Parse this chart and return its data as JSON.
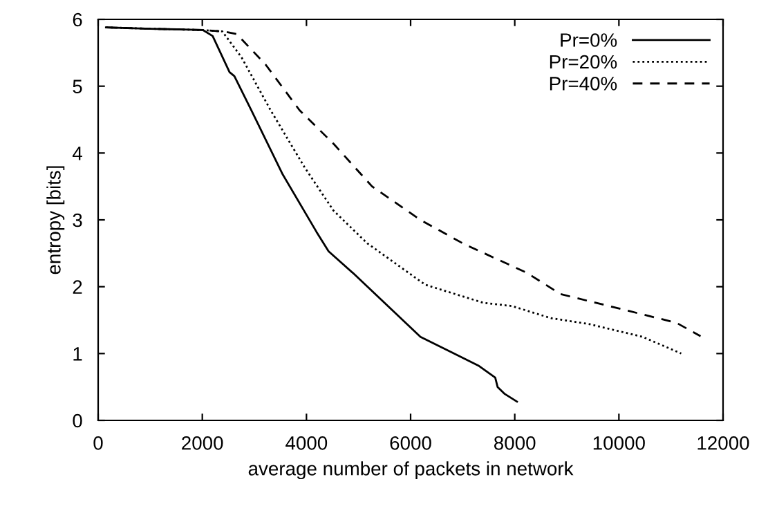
{
  "chart_data": {
    "type": "line",
    "xlabel": "average number of packets in network",
    "ylabel": "entropy [bits]",
    "xlim": [
      0,
      12000
    ],
    "ylim": [
      0,
      6
    ],
    "xticks": [
      0,
      2000,
      4000,
      6000,
      8000,
      10000,
      12000
    ],
    "yticks": [
      0,
      1,
      2,
      3,
      4,
      5,
      6
    ],
    "grid": false,
    "legend": "top right",
    "series": [
      {
        "name": "Pr=0%",
        "color": "#000000",
        "line_style": "solid",
        "x": [
          150,
          1000,
          2013,
          2199,
          2523,
          2616,
          2941,
          3544,
          4193,
          4425,
          4900,
          6190,
          7300,
          7625,
          7670,
          7800,
          8043
        ],
        "values": [
          5.88,
          5.86,
          5.84,
          5.75,
          5.21,
          5.15,
          4.64,
          3.68,
          2.82,
          2.53,
          2.2,
          1.25,
          0.82,
          0.64,
          0.5,
          0.4,
          0.28
        ]
      },
      {
        "name": "Pr=20%",
        "color": "#000000",
        "line_style": "dotted",
        "x": [
          150,
          1000,
          2000,
          2384,
          2755,
          3312,
          3961,
          4518,
          5167,
          6280,
          7393,
          7950,
          8692,
          9434,
          10455,
          11197
        ],
        "values": [
          5.88,
          5.86,
          5.84,
          5.82,
          5.43,
          4.64,
          3.79,
          3.14,
          2.65,
          2.03,
          1.76,
          1.71,
          1.53,
          1.44,
          1.25,
          1.0
        ]
      },
      {
        "name": "Pr=40%",
        "color": "#000000",
        "line_style": "dashed",
        "x": [
          150,
          1000,
          2000,
          2400,
          2662,
          3219,
          3868,
          4518,
          5260,
          6188,
          7022,
          8228,
          8878,
          10176,
          11104,
          11568
        ],
        "values": [
          5.88,
          5.86,
          5.84,
          5.82,
          5.78,
          5.32,
          4.64,
          4.14,
          3.5,
          3.0,
          2.64,
          2.21,
          1.89,
          1.64,
          1.46,
          1.26
        ]
      }
    ]
  }
}
